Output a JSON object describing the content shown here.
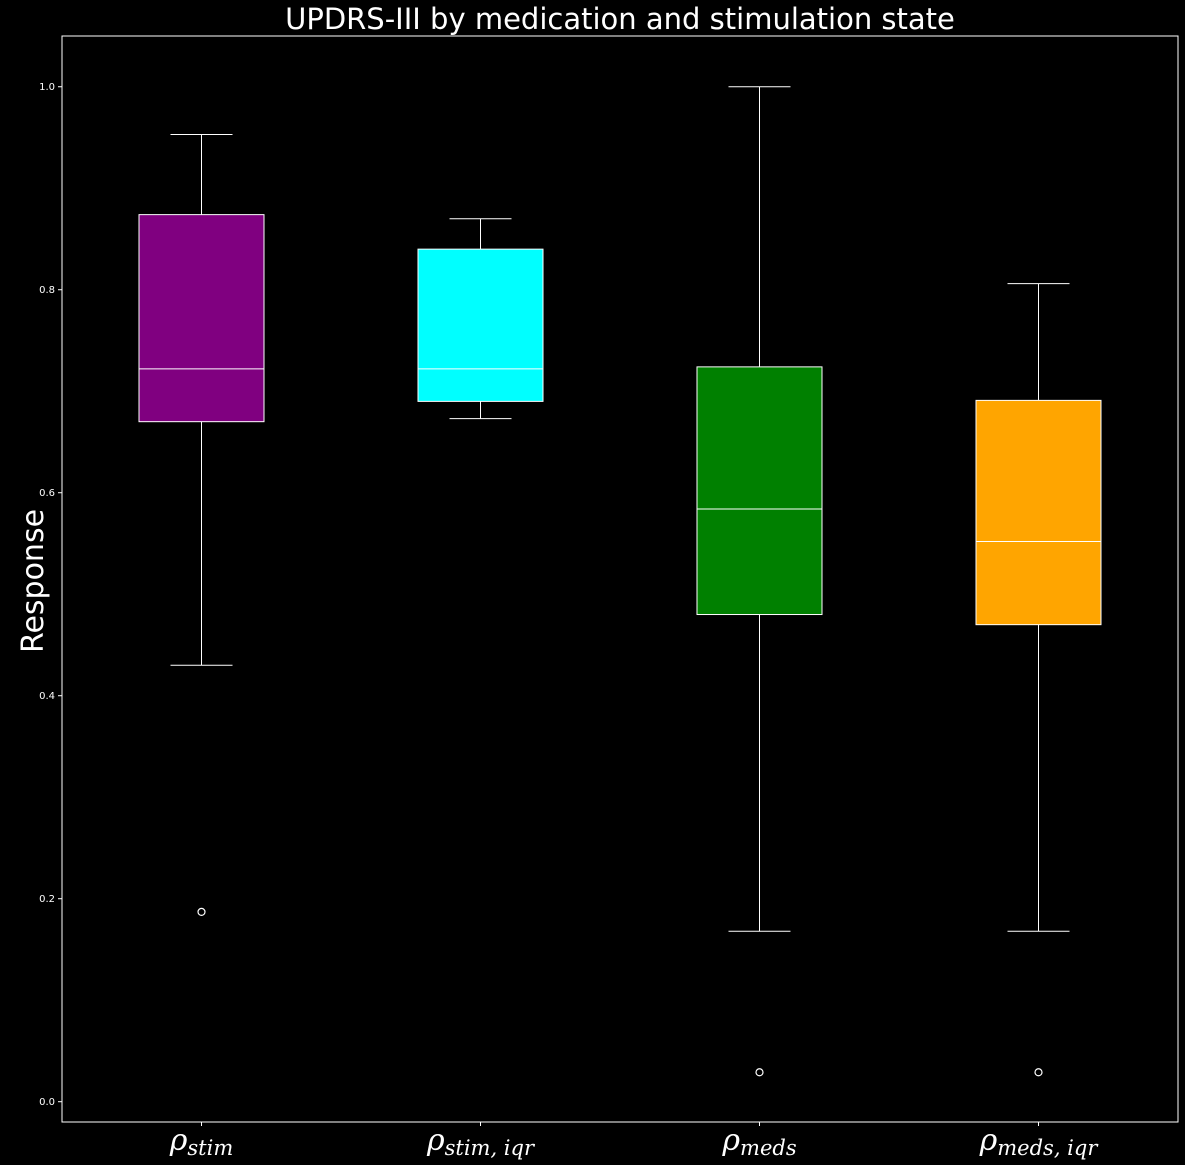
{
  "chart_data": {
    "type": "boxplot",
    "title": "UPDRS-III by medication and stimulation state",
    "ylabel": "Response",
    "xlabel": "",
    "ylim": [
      -0.02,
      1.05
    ],
    "yticks": [
      "0.0",
      "0.2",
      "0.4",
      "0.6",
      "0.8",
      "1.0"
    ],
    "grid": false,
    "background": "#000000",
    "foreground": "#ffffff",
    "boxes": [
      {
        "label_symbol": "ρ",
        "label_sub": "stim",
        "color": "#800080",
        "whisker_low": 0.43,
        "q1": 0.67,
        "median": 0.722,
        "q3": 0.874,
        "whisker_high": 0.953,
        "outliers": [
          0.187
        ]
      },
      {
        "label_symbol": "ρ",
        "label_sub": "stim, iqr",
        "color": "#00ffff",
        "whisker_low": 0.673,
        "q1": 0.69,
        "median": 0.722,
        "q3": 0.84,
        "whisker_high": 0.87,
        "outliers": []
      },
      {
        "label_symbol": "ρ",
        "label_sub": "meds",
        "color": "#008000",
        "whisker_low": 0.168,
        "q1": 0.48,
        "median": 0.584,
        "q3": 0.724,
        "whisker_high": 1.0,
        "outliers": [
          0.029
        ]
      },
      {
        "label_symbol": "ρ",
        "label_sub": "meds, iqr",
        "color": "#ffa500",
        "whisker_low": 0.168,
        "q1": 0.47,
        "median": 0.552,
        "q3": 0.691,
        "whisker_high": 0.806,
        "outliers": [
          0.029
        ]
      }
    ]
  }
}
